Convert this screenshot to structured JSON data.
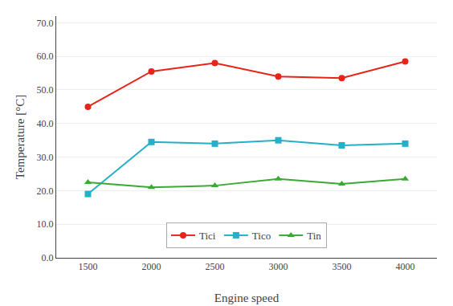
{
  "chart_data": {
    "type": "line",
    "xlabel": "Engine speed",
    "ylabel": "Temperature [°C]",
    "x": [
      1500,
      2000,
      2500,
      3000,
      3500,
      4000
    ],
    "series": [
      {
        "name": "Tici",
        "color": "#e8241a",
        "marker": "circle",
        "values": [
          45.0,
          55.5,
          58.0,
          54.0,
          53.5,
          58.5
        ]
      },
      {
        "name": "Tico",
        "color": "#23b0c8",
        "marker": "square",
        "values": [
          19.0,
          34.5,
          34.0,
          35.0,
          33.5,
          34.0
        ]
      },
      {
        "name": "Tin",
        "color": "#3aaa35",
        "marker": "triangle-up",
        "values": [
          22.5,
          21.0,
          21.5,
          23.5,
          22.0,
          23.5
        ]
      }
    ],
    "xlim": [
      1250,
      4250
    ],
    "xticks": [
      1500,
      2000,
      2500,
      3000,
      3500,
      4000
    ],
    "ylim": [
      0.0,
      72.0
    ],
    "yticks": [
      {
        "value": 0.0,
        "label": "0.0"
      },
      {
        "value": 10.0,
        "label": "10.0"
      },
      {
        "value": 20.0,
        "label": "20.0"
      },
      {
        "value": 30.0,
        "label": "30.0"
      },
      {
        "value": 40.0,
        "label": "40.0"
      },
      {
        "value": 50.0,
        "label": "50.0"
      },
      {
        "value": 60.0,
        "label": "60.0"
      },
      {
        "value": 70.0,
        "label": "70.0"
      }
    ],
    "grid": true,
    "legend": "lower center"
  }
}
